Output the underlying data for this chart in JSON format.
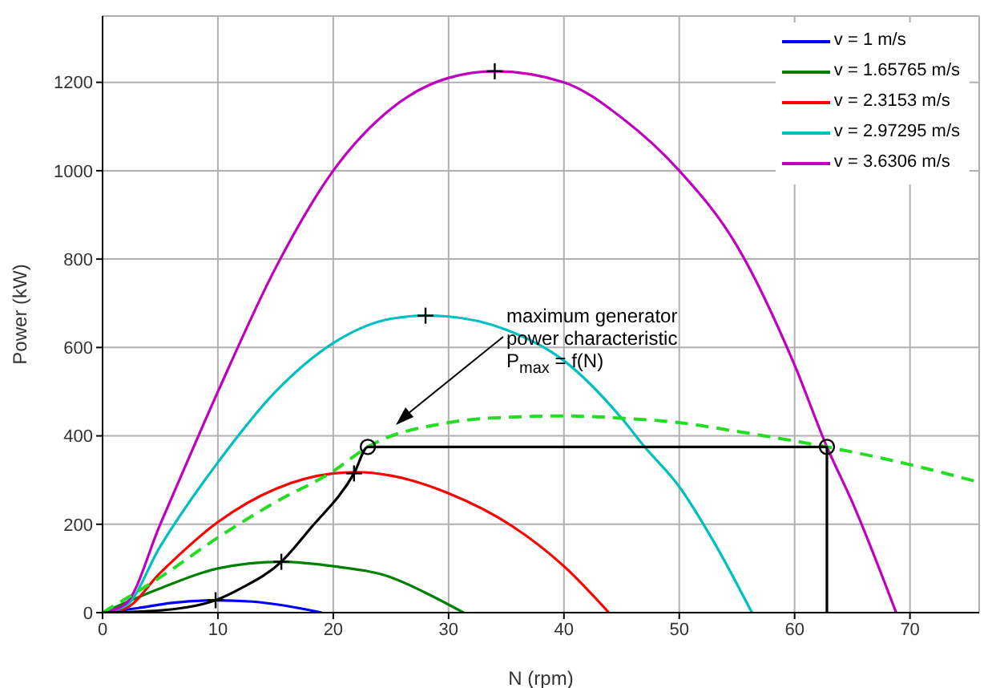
{
  "chart_data": {
    "type": "line",
    "xlabel": "N (rpm)",
    "ylabel": "Power (kW)",
    "xlim": [
      0,
      76
    ],
    "xticks": [
      0,
      10,
      20,
      30,
      40,
      50,
      60,
      70
    ],
    "ylim": [
      0,
      1350
    ],
    "yticks": [
      0,
      200,
      400,
      600,
      800,
      1000,
      1200
    ],
    "grid": true,
    "legend": "top right",
    "marker": "none",
    "line_style": "solid",
    "annotations": [
      "maximum generator power characteristic P$_{max}$ = f(N)"
    ],
    "series": [
      {
        "name": "v = 1 m/s",
        "color": "#0000ff",
        "x": [
          0,
          3,
          6,
          9.8,
          13,
          16,
          19
        ],
        "values": [
          0,
          10,
          22,
          28,
          25,
          15,
          0
        ]
      },
      {
        "name": "v = 1.65765 m/s",
        "color": "#008000",
        "x": [
          0,
          5,
          10,
          15.5,
          20,
          25,
          28,
          31.3
        ],
        "values": [
          0,
          55,
          100,
          115,
          105,
          80,
          45,
          0
        ]
      },
      {
        "name": "v = 2.3153 m/s",
        "color": "#ff0000",
        "x": [
          0,
          2,
          5,
          10,
          15,
          20,
          22,
          25,
          30,
          35.5,
          40,
          43.9
        ],
        "values": [
          0,
          10,
          90,
          205,
          280,
          315,
          318,
          310,
          270,
          196,
          105,
          0
        ]
      },
      {
        "name": "v = 2.97295 m/s",
        "color": "#00bfbf",
        "x": [
          0,
          2,
          5,
          10,
          15,
          20,
          25,
          28,
          30,
          35,
          40,
          45,
          47,
          50,
          53,
          56.3
        ],
        "values": [
          0,
          15,
          150,
          340,
          500,
          610,
          665,
          672,
          670,
          640,
          570,
          440,
          375,
          285,
          160,
          0
        ]
      },
      {
        "name": "v = 3.6306 m/s",
        "color": "#bf00bf",
        "x": [
          0,
          2,
          5,
          10,
          15,
          20,
          25,
          30,
          34,
          40,
          45,
          50,
          55,
          60,
          62.8,
          65,
          68.8
        ],
        "values": [
          0,
          20,
          200,
          500,
          780,
          1000,
          1140,
          1210,
          1225,
          1200,
          1120,
          1000,
          830,
          560,
          375,
          250,
          0
        ]
      },
      {
        "color": "#22dd22",
        "line_style": "dashed",
        "x": [
          0,
          5,
          10,
          15,
          20,
          23,
          30,
          35,
          40,
          45,
          50,
          55,
          62.8,
          70,
          76
        ],
        "values": [
          0,
          80,
          170,
          250,
          320,
          375,
          430,
          442,
          445,
          440,
          430,
          410,
          375,
          335,
          295
        ]
      },
      {
        "color": "#000000",
        "x": [
          0,
          5,
          9.8,
          12,
          15.5,
          18,
          21.8,
          23,
          62.8,
          62.8
        ],
        "values": [
          0,
          5,
          28,
          55,
          115,
          190,
          315,
          375,
          375,
          0
        ]
      },
      {
        "type": "scatter",
        "color": "#000000",
        "marker": "cross",
        "x": [
          9.8,
          15.5,
          21.8,
          28,
          34
        ],
        "values": [
          28,
          115,
          315,
          672,
          1225
        ]
      },
      {
        "type": "scatter",
        "color": "#000000",
        "marker": "circle",
        "x": [
          23,
          62.8
        ],
        "values": [
          375,
          375
        ]
      }
    ]
  }
}
